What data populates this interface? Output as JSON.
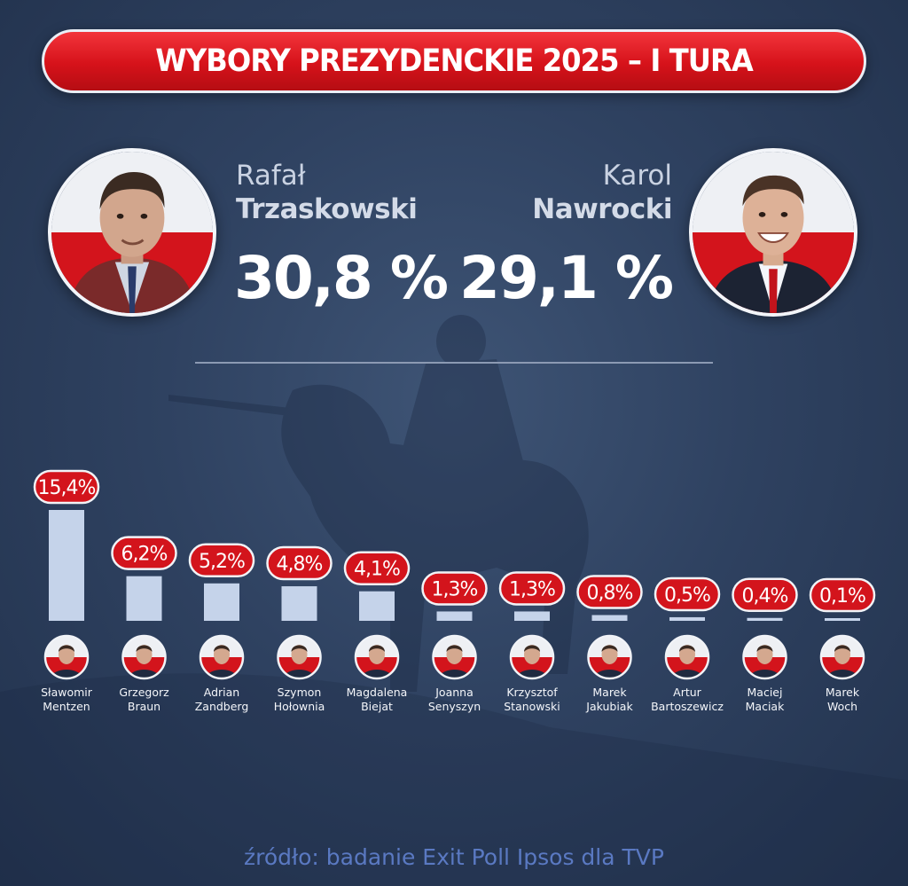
{
  "header": {
    "title": "WYBORY PREZYDENCKIE 2025 – I TURA"
  },
  "finalists": [
    {
      "first_name": "Rafał",
      "last_name": "Trzaskowski",
      "result": "30,8 %"
    },
    {
      "first_name": "Karol",
      "last_name": "Nawrocki",
      "result": "29,1 %"
    }
  ],
  "chart_data": {
    "type": "bar",
    "categories": [
      "Sławomir Mentzen",
      "Grzegorz Braun",
      "Adrian Zandberg",
      "Szymon Hołownia",
      "Magdalena Biejat",
      "Joanna Senyszyn",
      "Krzysztof Stanowski",
      "Marek Jakubiak",
      "Artur Bartoszewicz",
      "Maciej Maciak",
      "Marek Woch"
    ],
    "name_lines": [
      [
        "Sławomir",
        "Mentzen"
      ],
      [
        "Grzegorz",
        "Braun"
      ],
      [
        "Adrian",
        "Zandberg"
      ],
      [
        "Szymon",
        "Hołownia"
      ],
      [
        "Magdalena",
        "Biejat"
      ],
      [
        "Joanna",
        "Senyszyn"
      ],
      [
        "Krzysztof",
        "Stanowski"
      ],
      [
        "Marek",
        "Jakubiak"
      ],
      [
        "Artur",
        "Bartoszewicz"
      ],
      [
        "Maciej",
        "Maciak"
      ],
      [
        "Marek",
        "Woch"
      ]
    ],
    "values": [
      15.4,
      6.2,
      5.2,
      4.8,
      4.1,
      1.3,
      1.3,
      0.8,
      0.5,
      0.4,
      0.1
    ],
    "value_labels": [
      "15,4%",
      "6,2%",
      "5,2%",
      "4,8%",
      "4,1%",
      "1,3%",
      "1,3%",
      "0,8%",
      "0,5%",
      "0,4%",
      "0,1%"
    ],
    "ylim": [
      0,
      15.4
    ],
    "grid": false,
    "bar_color": "#c5d3ea",
    "label_color": "#d3141c"
  },
  "footer": {
    "source": "źródło: badanie Exit Poll Ipsos dla TVP"
  },
  "colors": {
    "accent_red": "#d6121a",
    "background": "#2f4261"
  }
}
